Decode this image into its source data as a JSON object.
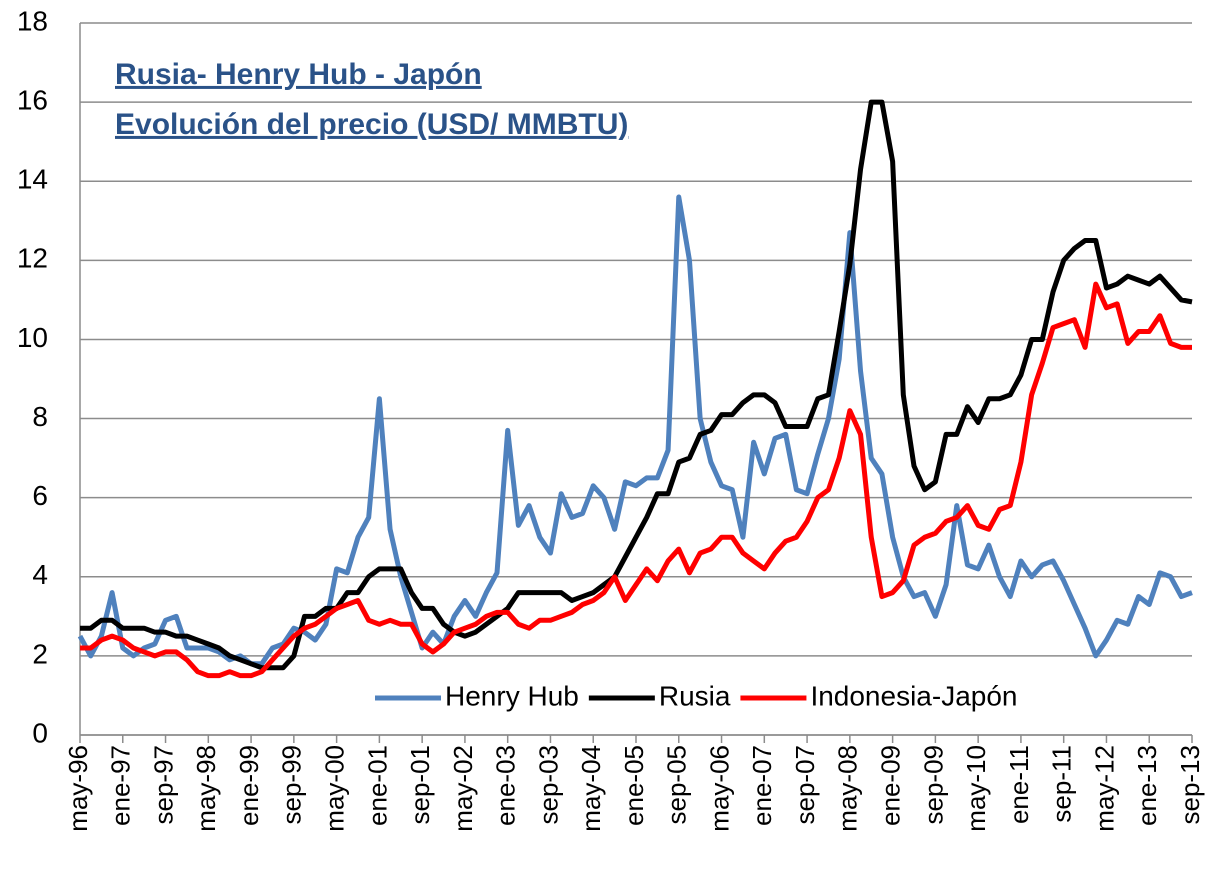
{
  "chart_data": {
    "type": "line",
    "title": "Rusia- Henry Hub - Japón",
    "subtitle": "Evolución del precio (USD/ MMBTU)",
    "categories": [
      "may-96",
      null,
      null,
      null,
      "ene-97",
      null,
      null,
      null,
      "sep-97",
      null,
      null,
      null,
      "may-98",
      null,
      null,
      null,
      "ene-99",
      null,
      null,
      null,
      "sep-99",
      null,
      null,
      null,
      "may-00",
      null,
      null,
      null,
      "ene-01",
      null,
      null,
      null,
      "sep-01",
      null,
      null,
      null,
      "may-02",
      null,
      null,
      null,
      "ene-03",
      null,
      null,
      null,
      "sep-03",
      null,
      null,
      null,
      "may-04",
      null,
      null,
      null,
      "ene-05",
      null,
      null,
      null,
      "sep-05",
      null,
      null,
      null,
      "may-06",
      null,
      null,
      null,
      "ene-07",
      null,
      null,
      null,
      "sep-07",
      null,
      null,
      null,
      "may-08",
      null,
      null,
      null,
      "ene-09",
      null,
      null,
      null,
      "sep-09",
      null,
      null,
      null,
      "may-10",
      null,
      null,
      null,
      "ene-11",
      null,
      null,
      null,
      "sep-11",
      null,
      null,
      null,
      "may-12",
      null,
      null,
      null,
      "ene-13",
      null,
      null,
      null,
      "sep-13"
    ],
    "series": [
      {
        "name": "Henry Hub",
        "color": "#4f81bd",
        "values": [
          2.5,
          2.0,
          2.5,
          3.6,
          2.2,
          2.0,
          2.2,
          2.3,
          2.9,
          3.0,
          2.2,
          2.2,
          2.2,
          2.1,
          1.9,
          2.0,
          1.8,
          1.8,
          2.2,
          2.3,
          2.7,
          2.6,
          2.4,
          2.8,
          4.2,
          4.1,
          5.0,
          5.5,
          8.5,
          5.2,
          4.0,
          3.1,
          2.2,
          2.6,
          2.3,
          3.0,
          3.4,
          3.0,
          3.6,
          4.1,
          7.7,
          5.3,
          5.8,
          5.0,
          4.6,
          6.1,
          5.5,
          5.6,
          6.3,
          6.0,
          5.2,
          6.4,
          6.3,
          6.5,
          6.5,
          7.2,
          13.6,
          12.0,
          8.0,
          6.9,
          6.3,
          6.2,
          5.0,
          7.4,
          6.6,
          7.5,
          7.6,
          6.2,
          6.1,
          7.1,
          8.0,
          9.5,
          12.7,
          9.2,
          7.0,
          6.6,
          5.0,
          4.0,
          3.5,
          3.6,
          3.0,
          3.8,
          5.8,
          4.3,
          4.2,
          4.8,
          4.0,
          3.5,
          4.4,
          4.0,
          4.3,
          4.4,
          3.9,
          3.3,
          2.7,
          2.0,
          2.4,
          2.9,
          2.8,
          3.5,
          3.3,
          4.1,
          4.0,
          3.5,
          3.6
        ]
      },
      {
        "name": "Rusia",
        "color": "#000000",
        "values": [
          2.7,
          2.7,
          2.9,
          2.9,
          2.7,
          2.7,
          2.7,
          2.6,
          2.6,
          2.5,
          2.5,
          2.4,
          2.3,
          2.2,
          2.0,
          1.9,
          1.8,
          1.7,
          1.7,
          1.7,
          2.0,
          3.0,
          3.0,
          3.2,
          3.2,
          3.6,
          3.6,
          4.0,
          4.2,
          4.2,
          4.2,
          3.6,
          3.2,
          3.2,
          2.8,
          2.6,
          2.5,
          2.6,
          2.8,
          3.0,
          3.2,
          3.6,
          3.6,
          3.6,
          3.6,
          3.6,
          3.4,
          3.5,
          3.6,
          3.8,
          4.0,
          4.5,
          5.0,
          5.5,
          6.1,
          6.1,
          6.9,
          7.0,
          7.6,
          7.7,
          8.1,
          8.1,
          8.4,
          8.6,
          8.6,
          8.4,
          7.8,
          7.8,
          7.8,
          8.5,
          8.6,
          10.2,
          11.9,
          14.3,
          16.0,
          16.0,
          14.5,
          8.6,
          6.8,
          6.2,
          6.4,
          7.6,
          7.6,
          8.3,
          7.9,
          8.5,
          8.5,
          8.6,
          9.1,
          10.0,
          10.0,
          11.2,
          12.0,
          12.3,
          12.5,
          12.5,
          11.3,
          11.4,
          11.6,
          11.5,
          11.4,
          11.6,
          11.3,
          11.0,
          10.95
        ]
      },
      {
        "name": "Indonesia-Japón",
        "color": "#ff0000",
        "values": [
          2.2,
          2.2,
          2.4,
          2.5,
          2.4,
          2.2,
          2.1,
          2.0,
          2.1,
          2.1,
          1.9,
          1.6,
          1.5,
          1.5,
          1.6,
          1.5,
          1.5,
          1.6,
          1.9,
          2.2,
          2.5,
          2.7,
          2.8,
          3.0,
          3.2,
          3.3,
          3.4,
          2.9,
          2.8,
          2.9,
          2.8,
          2.8,
          2.3,
          2.1,
          2.3,
          2.6,
          2.7,
          2.8,
          3.0,
          3.1,
          3.1,
          2.8,
          2.7,
          2.9,
          2.9,
          3.0,
          3.1,
          3.3,
          3.4,
          3.6,
          4.0,
          3.4,
          3.8,
          4.2,
          3.9,
          4.4,
          4.7,
          4.1,
          4.6,
          4.7,
          5.0,
          5.0,
          4.6,
          4.4,
          4.2,
          4.6,
          4.9,
          5.0,
          5.4,
          6.0,
          6.2,
          7.0,
          8.2,
          7.6,
          5.0,
          3.5,
          3.6,
          3.9,
          4.8,
          5.0,
          5.1,
          5.4,
          5.5,
          5.8,
          5.3,
          5.2,
          5.7,
          5.8,
          6.9,
          8.6,
          9.4,
          10.3,
          10.4,
          10.5,
          9.8,
          11.4,
          10.8,
          10.9,
          9.9,
          10.2,
          10.2,
          10.6,
          9.9,
          9.8,
          9.8
        ]
      }
    ],
    "ylim": [
      0,
      18
    ],
    "yticks": [
      0,
      2,
      4,
      6,
      8,
      10,
      12,
      14,
      16,
      18
    ],
    "grid": true,
    "legend": "bottom"
  }
}
